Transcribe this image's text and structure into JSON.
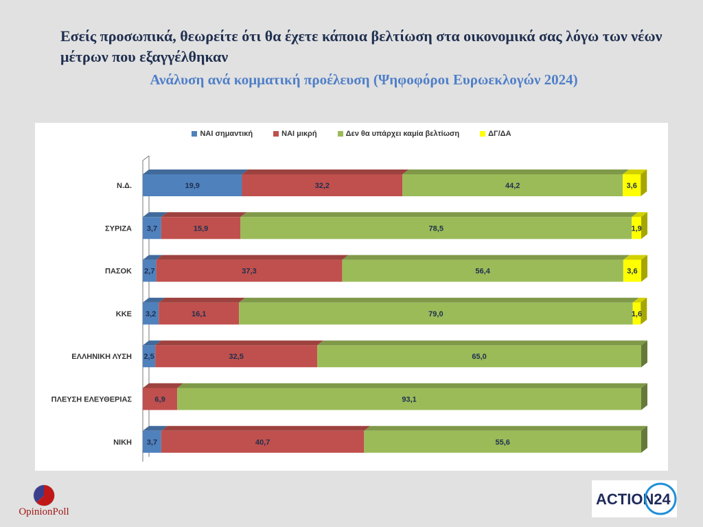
{
  "title": "Εσείς προσωπικά, θεωρείτε ότι θα έχετε κάποια βελτίωση στα οικονομικά σας λόγω των νέων μέτρων που εξαγγέλθηκαν",
  "subtitle": "Ανάλυση ανά κομματική προέλευση (Ψηφοφόροι Ευρωεκλογών 2024)",
  "logos": {
    "opinionpoll": "OpinionPoll",
    "action24": "ACTION24"
  },
  "chart_data": {
    "type": "bar",
    "orientation": "horizontal",
    "stacked": true,
    "categories": [
      "Ν.Δ.",
      "ΣΥΡΙΖΑ",
      "ΠΑΣΟΚ",
      "ΚΚΕ",
      "ΕΛΛΗΝΙΚΗ ΛΥΣΗ",
      "ΠΛΕΥΣΗ ΕΛΕΥΘΕΡΙΑΣ",
      "ΝΙΚΗ"
    ],
    "series": [
      {
        "name": "ΝΑΙ σημαντική",
        "color": "#4f81bd",
        "values": [
          19.9,
          3.7,
          2.7,
          3.2,
          2.5,
          0,
          3.7
        ]
      },
      {
        "name": "ΝΑΙ μικρή",
        "color": "#c0504d",
        "values": [
          32.2,
          15.9,
          37.3,
          16.1,
          32.5,
          6.9,
          40.7
        ]
      },
      {
        "name": "Δεν θα υπάρχει καμία βελτίωση",
        "color": "#9bbb59",
        "values": [
          44.2,
          78.5,
          56.4,
          79.0,
          65.0,
          93.1,
          55.6
        ]
      },
      {
        "name": "ΔΓ/ΔΑ",
        "color": "#ffff00",
        "values": [
          3.6,
          1.9,
          3.6,
          1.6,
          0,
          0,
          0
        ]
      }
    ],
    "xlim": [
      0,
      100
    ],
    "legend_position": "top",
    "grid": false
  }
}
